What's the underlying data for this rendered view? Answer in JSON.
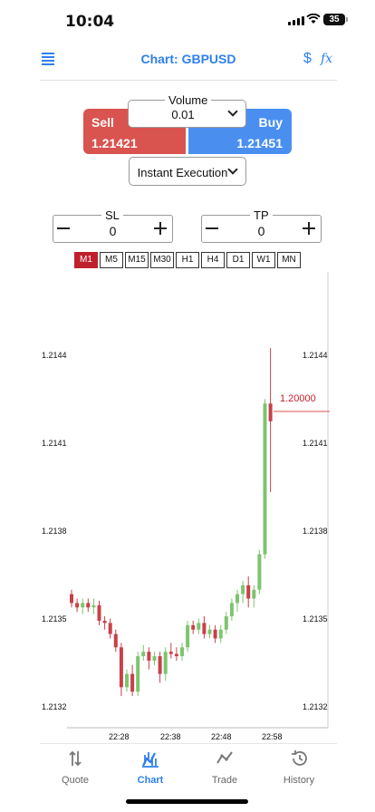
{
  "status": {
    "time": "10:04",
    "battery": "35"
  },
  "header": {
    "title": "Chart: GBPUSD",
    "dollar_icon": "$",
    "fx_icon": "fx"
  },
  "trade": {
    "volume_label": "Volume",
    "volume_value": "0.01",
    "sell_label": "Sell",
    "sell_price": "1.21421",
    "buy_label": "Buy",
    "buy_price": "1.21451",
    "execution": "Instant Execution",
    "sl_label": "SL",
    "sl_value": "0",
    "tp_label": "TP",
    "tp_value": "0"
  },
  "timeframes": [
    "M1",
    "M5",
    "M15",
    "M30",
    "H1",
    "H4",
    "D1",
    "W1",
    "MN"
  ],
  "active_timeframe": "M1",
  "colors": {
    "accent": "#2f80ed",
    "sell": "#d9534f",
    "buy": "#4a8ff0",
    "bull": "#7ec46f",
    "bear": "#c8404a"
  },
  "chart_data": {
    "type": "candlestick",
    "yticks": [
      "1.2144",
      "1.2141",
      "1.2138",
      "1.2135",
      "1.2132"
    ],
    "xticks": [
      "22:28",
      "22:38",
      "22:48",
      "22:58"
    ],
    "ylim": [
      1.21307,
      1.21491
    ],
    "price_line": "1.20000",
    "candles": [
      [
        1.21364,
        1.21366,
        1.21358,
        1.2136
      ],
      [
        1.2136,
        1.21362,
        1.21356,
        1.21358
      ],
      [
        1.21358,
        1.21362,
        1.21355,
        1.2136
      ],
      [
        1.2136,
        1.21362,
        1.21356,
        1.21358
      ],
      [
        1.21358,
        1.21362,
        1.21355,
        1.21359
      ],
      [
        1.21359,
        1.21361,
        1.2135,
        1.21352
      ],
      [
        1.21352,
        1.21354,
        1.21348,
        1.21351
      ],
      [
        1.21351,
        1.21353,
        1.21344,
        1.21346
      ],
      [
        1.21346,
        1.21348,
        1.21338,
        1.2134
      ],
      [
        1.2134,
        1.21342,
        1.21318,
        1.21322
      ],
      [
        1.21322,
        1.2133,
        1.2132,
        1.21328
      ],
      [
        1.21328,
        1.21332,
        1.21318,
        1.2132
      ],
      [
        1.2132,
        1.21338,
        1.21318,
        1.21336
      ],
      [
        1.21336,
        1.21341,
        1.21334,
        1.21338
      ],
      [
        1.21338,
        1.2134,
        1.2133,
        1.21334
      ],
      [
        1.21334,
        1.21338,
        1.21332,
        1.21336
      ],
      [
        1.21336,
        1.21338,
        1.21324,
        1.21328
      ],
      [
        1.21328,
        1.2134,
        1.21325,
        1.21338
      ],
      [
        1.21338,
        1.21342,
        1.21335,
        1.21337
      ],
      [
        1.21337,
        1.2134,
        1.21334,
        1.21336
      ],
      [
        1.21336,
        1.21342,
        1.21334,
        1.2134
      ],
      [
        1.2134,
        1.21352,
        1.21338,
        1.2135
      ],
      [
        1.2135,
        1.21352,
        1.21346,
        1.21348
      ],
      [
        1.21348,
        1.21353,
        1.21346,
        1.21351
      ],
      [
        1.21351,
        1.21354,
        1.21344,
        1.21346
      ],
      [
        1.21346,
        1.2135,
        1.21344,
        1.21348
      ],
      [
        1.21348,
        1.2135,
        1.21342,
        1.21344
      ],
      [
        1.21344,
        1.2135,
        1.21342,
        1.21348
      ],
      [
        1.21348,
        1.21356,
        1.21346,
        1.21354
      ],
      [
        1.21354,
        1.21362,
        1.21352,
        1.2136
      ],
      [
        1.2136,
        1.21366,
        1.21356,
        1.21364
      ],
      [
        1.21364,
        1.2137,
        1.2136,
        1.21368
      ],
      [
        1.21368,
        1.21372,
        1.21358,
        1.21362
      ],
      [
        1.21362,
        1.21368,
        1.21358,
        1.21366
      ],
      [
        1.21366,
        1.21384,
        1.21364,
        1.21382
      ],
      [
        1.21382,
        1.21452,
        1.2138,
        1.2145
      ],
      [
        1.2145,
        1.21475,
        1.2141,
        1.21442
      ]
    ]
  },
  "nav": [
    {
      "label": "Quote",
      "icon": "quote-icon"
    },
    {
      "label": "Chart",
      "icon": "chart-icon"
    },
    {
      "label": "Trade",
      "icon": "trade-icon"
    },
    {
      "label": "History",
      "icon": "history-icon"
    }
  ],
  "active_nav": "Chart"
}
